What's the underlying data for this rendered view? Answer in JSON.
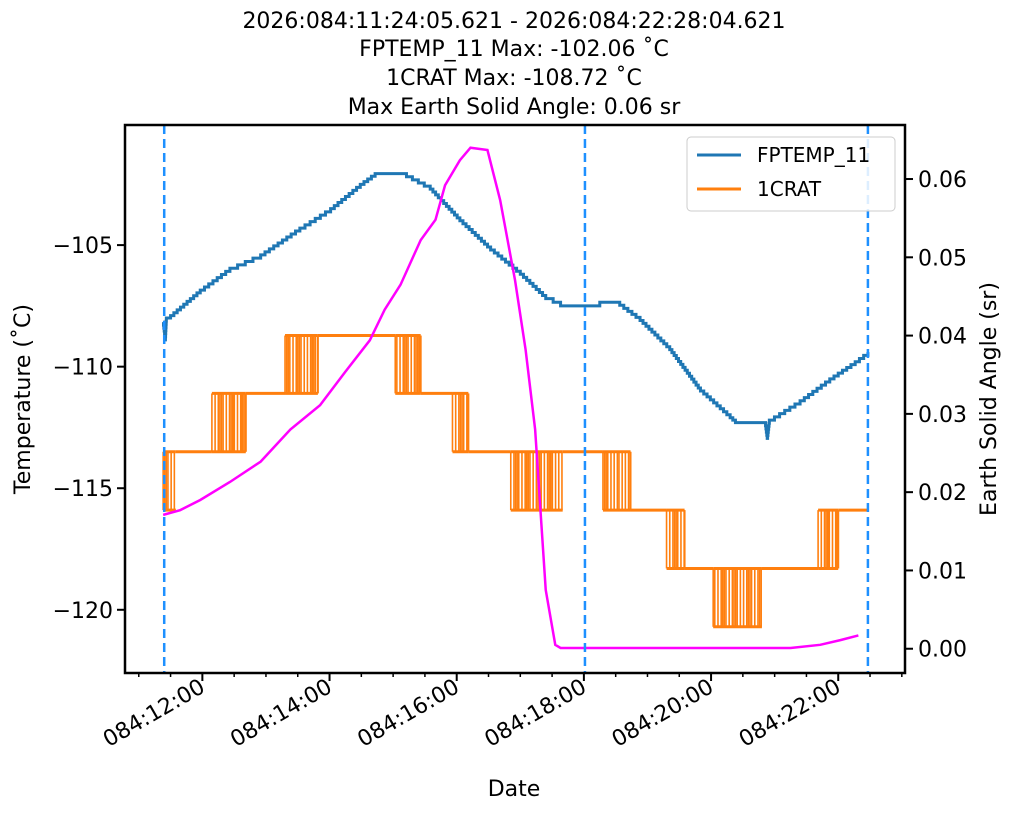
{
  "chart_data": {
    "type": "line",
    "title_lines": [
      "2026:084:11:24:05.621 - 2026:084:22:28:04.621",
      "FPTEMP_11 Max: -102.06 ˚C",
      "1CRAT Max: -108.72 ˚C",
      "Max Earth Solid Angle: 0.06 sr"
    ],
    "xlabel": "Date",
    "ylabel_left": "Temperature (˚C)",
    "ylabel_right": "Earth Solid Angle (sr)",
    "xlim": [
      "084:10:47",
      "084:23:03"
    ],
    "ylim_left": [
      -122.6,
      -100.06
    ],
    "ylim_right": [
      -0.0031,
      0.0669
    ],
    "x_ticks": [
      "084:12:00",
      "084:14:00",
      "084:16:00",
      "084:18:00",
      "084:20:00",
      "084:22:00"
    ],
    "y_ticks_left": [
      -105,
      -110,
      -115,
      -120
    ],
    "y_ticks_left_labels": [
      "−105",
      "−110",
      "−115",
      "−120"
    ],
    "y_ticks_right": [
      0.0,
      0.01,
      0.02,
      0.03,
      0.04,
      0.05,
      0.06
    ],
    "y_ticks_right_labels": [
      "0.00",
      "0.01",
      "0.02",
      "0.03",
      "0.04",
      "0.05",
      "0.06"
    ],
    "grid": false,
    "legend_placement": "top-right",
    "vertical_lines": {
      "color": "#1e90ff",
      "style": "dashed",
      "x": [
        "084:11:24",
        "084:18:01",
        "084:22:28"
      ]
    },
    "series": [
      {
        "name": "FPTEMP_11",
        "axis": "left",
        "color": "#1f77b4",
        "points": [
          [
            "084:11:23",
            -108.17
          ],
          [
            "084:11:25",
            -108.9
          ],
          [
            "084:11:26",
            -108.0
          ],
          [
            "084:11:30",
            -107.9
          ],
          [
            "084:11:58",
            -106.85
          ],
          [
            "084:12:26",
            -105.95
          ],
          [
            "084:12:55",
            -105.4
          ],
          [
            "084:13:32",
            -104.3
          ],
          [
            "084:14:01",
            -103.5
          ],
          [
            "084:14:29",
            -102.5
          ],
          [
            "084:14:43",
            -102.06
          ],
          [
            "084:15:07",
            -102.06
          ],
          [
            "084:15:35",
            -102.7
          ],
          [
            "084:16:03",
            -104.0
          ],
          [
            "084:16:32",
            -105.2
          ],
          [
            "084:17:00",
            -106.2
          ],
          [
            "084:17:24",
            -107.2
          ],
          [
            "084:17:38",
            -107.5
          ],
          [
            "084:18:01",
            -107.5
          ],
          [
            "084:18:15",
            -107.35
          ],
          [
            "084:18:30",
            -107.35
          ],
          [
            "084:18:53",
            -108.1
          ],
          [
            "084:19:21",
            -109.3
          ],
          [
            "084:19:50",
            -111.0
          ],
          [
            "084:20:18",
            -112.1
          ],
          [
            "084:20:23",
            -112.3
          ],
          [
            "084:20:51",
            -112.3
          ],
          [
            "084:20:53",
            -112.95
          ],
          [
            "084:20:55",
            -112.2
          ],
          [
            "084:21:24",
            -111.4
          ],
          [
            "084:21:52",
            -110.5
          ],
          [
            "084:22:16",
            -109.8
          ],
          [
            "084:22:28",
            -109.4
          ]
        ]
      },
      {
        "name": "1CRAT",
        "axis": "left",
        "color": "#ff7f0e",
        "segments": [
          {
            "from": "084:11:23",
            "to": "084:11:35",
            "level": -113.5,
            "alt": -115.9
          },
          {
            "from": "084:11:35",
            "to": "084:12:09",
            "level": -113.5
          },
          {
            "from": "084:12:09",
            "to": "084:12:41",
            "level": -113.5,
            "alt": -111.1
          },
          {
            "from": "084:12:41",
            "to": "084:13:18",
            "level": -111.1
          },
          {
            "from": "084:13:18",
            "to": "084:13:49",
            "level": -111.1,
            "alt": -108.72
          },
          {
            "from": "084:13:49",
            "to": "084:15:02",
            "level": -108.72
          },
          {
            "from": "084:15:02",
            "to": "084:15:26",
            "level": -108.72,
            "alt": -111.1
          },
          {
            "from": "084:15:26",
            "to": "084:15:56",
            "level": -111.1
          },
          {
            "from": "084:15:56",
            "to": "084:16:11",
            "level": -111.1,
            "alt": -113.5
          },
          {
            "from": "084:16:11",
            "to": "084:16:51",
            "level": -113.5
          },
          {
            "from": "084:16:51",
            "to": "084:17:40",
            "level": -113.5,
            "alt": -115.9
          },
          {
            "from": "084:17:40",
            "to": "084:18:18",
            "level": -113.5
          },
          {
            "from": "084:18:18",
            "to": "084:18:44",
            "level": -113.5,
            "alt": -115.9
          },
          {
            "from": "084:18:44",
            "to": "084:19:18",
            "level": -115.9
          },
          {
            "from": "084:19:18",
            "to": "084:19:35",
            "level": -115.9,
            "alt": -118.3
          },
          {
            "from": "084:19:35",
            "to": "084:20:02",
            "level": -118.3
          },
          {
            "from": "084:20:02",
            "to": "084:20:48",
            "level": -118.3,
            "alt": -120.7
          },
          {
            "from": "084:20:48",
            "to": "084:21:41",
            "level": -118.3
          },
          {
            "from": "084:21:41",
            "to": "084:22:00",
            "level": -118.3,
            "alt": -115.9
          },
          {
            "from": "084:22:00",
            "to": "084:22:28",
            "level": -115.9
          }
        ]
      },
      {
        "axis": "right",
        "color": "#ff00ff",
        "points": [
          [
            "084:11:23",
            0.0171
          ],
          [
            "084:11:39",
            0.0177
          ],
          [
            "084:11:58",
            0.019
          ],
          [
            "084:12:26",
            0.0213
          ],
          [
            "084:12:55",
            0.0239
          ],
          [
            "084:13:23",
            0.028
          ],
          [
            "084:13:51",
            0.0311
          ],
          [
            "084:14:15",
            0.0354
          ],
          [
            "084:14:38",
            0.0394
          ],
          [
            "084:14:52",
            0.0433
          ],
          [
            "084:15:07",
            0.0465
          ],
          [
            "084:15:26",
            0.0522
          ],
          [
            "084:15:40",
            0.0548
          ],
          [
            "084:15:49",
            0.0592
          ],
          [
            "084:16:03",
            0.0624
          ],
          [
            "084:16:13",
            0.064
          ],
          [
            "084:16:29",
            0.0637
          ],
          [
            "084:16:41",
            0.0573
          ],
          [
            "084:16:55",
            0.0471
          ],
          [
            "084:17:05",
            0.0382
          ],
          [
            "084:17:14",
            0.028
          ],
          [
            "084:17:24",
            0.0075
          ],
          [
            "084:17:33",
            0.0005
          ],
          [
            "084:17:38",
            0.0001
          ],
          [
            "084:21:15",
            0.0001
          ],
          [
            "084:21:43",
            0.0005
          ],
          [
            "084:22:02",
            0.0011
          ],
          [
            "084:22:19",
            0.0017
          ]
        ]
      }
    ]
  }
}
